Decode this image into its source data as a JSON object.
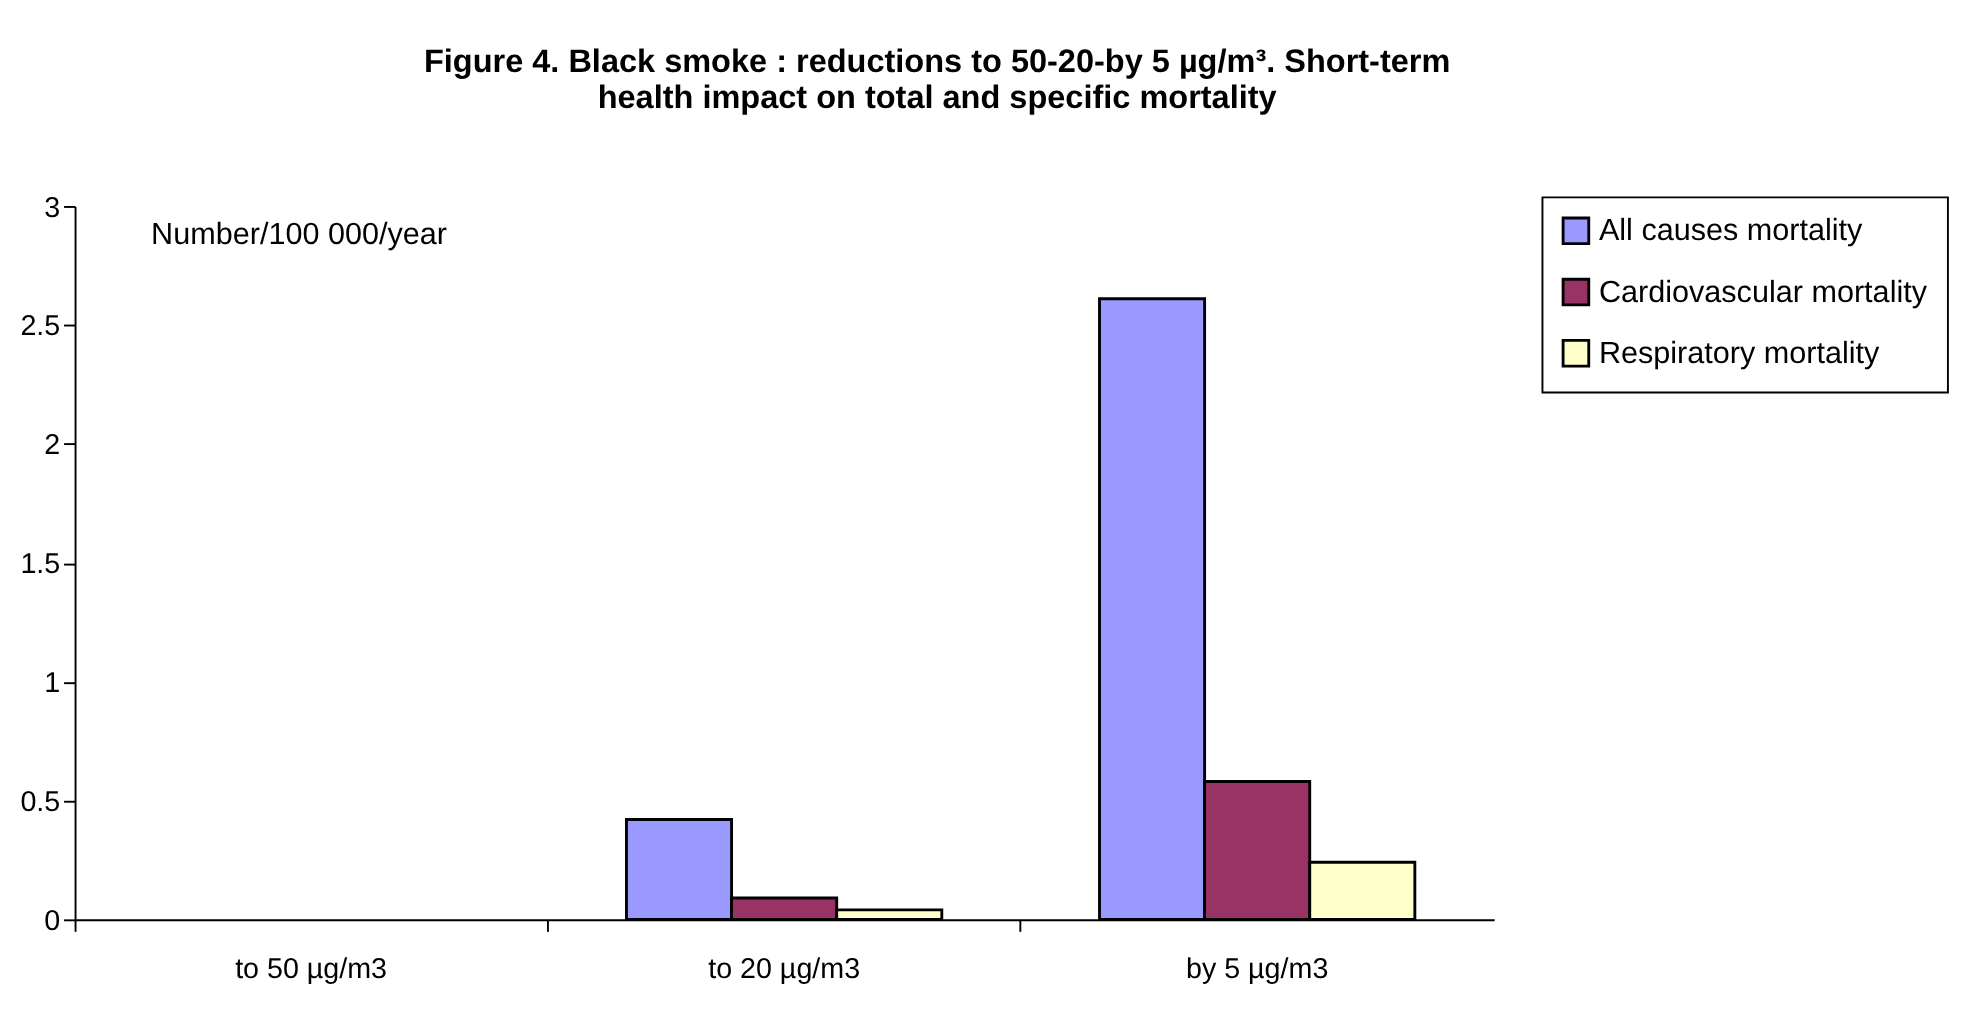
{
  "chart_data": {
    "type": "bar",
    "title": [
      "Figure 4. Black smoke : reductions to 50-20-by 5 µg/m³. Short-term",
      "health impact on total and specific mortality"
    ],
    "categories": [
      "to 50 µg/m3",
      "to 20 µg/m3",
      "by 5 µg/m3"
    ],
    "series": [
      {
        "name": "All causes mortality",
        "color": "#9999ff",
        "values": [
          null,
          0.42,
          2.61
        ]
      },
      {
        "name": "Cardiovascular mortality",
        "color": "#993366",
        "values": [
          null,
          0.09,
          0.58
        ]
      },
      {
        "name": "Respiratory mortality",
        "color": "#ffffcc",
        "values": [
          null,
          0.04,
          0.24
        ]
      }
    ],
    "annotations": [
      "Number/100 000/year"
    ],
    "ylim": [
      0,
      3
    ],
    "yticks": [
      0,
      0.5,
      1,
      1.5,
      2,
      2.5,
      3
    ],
    "grid": false,
    "legend": "top right"
  }
}
